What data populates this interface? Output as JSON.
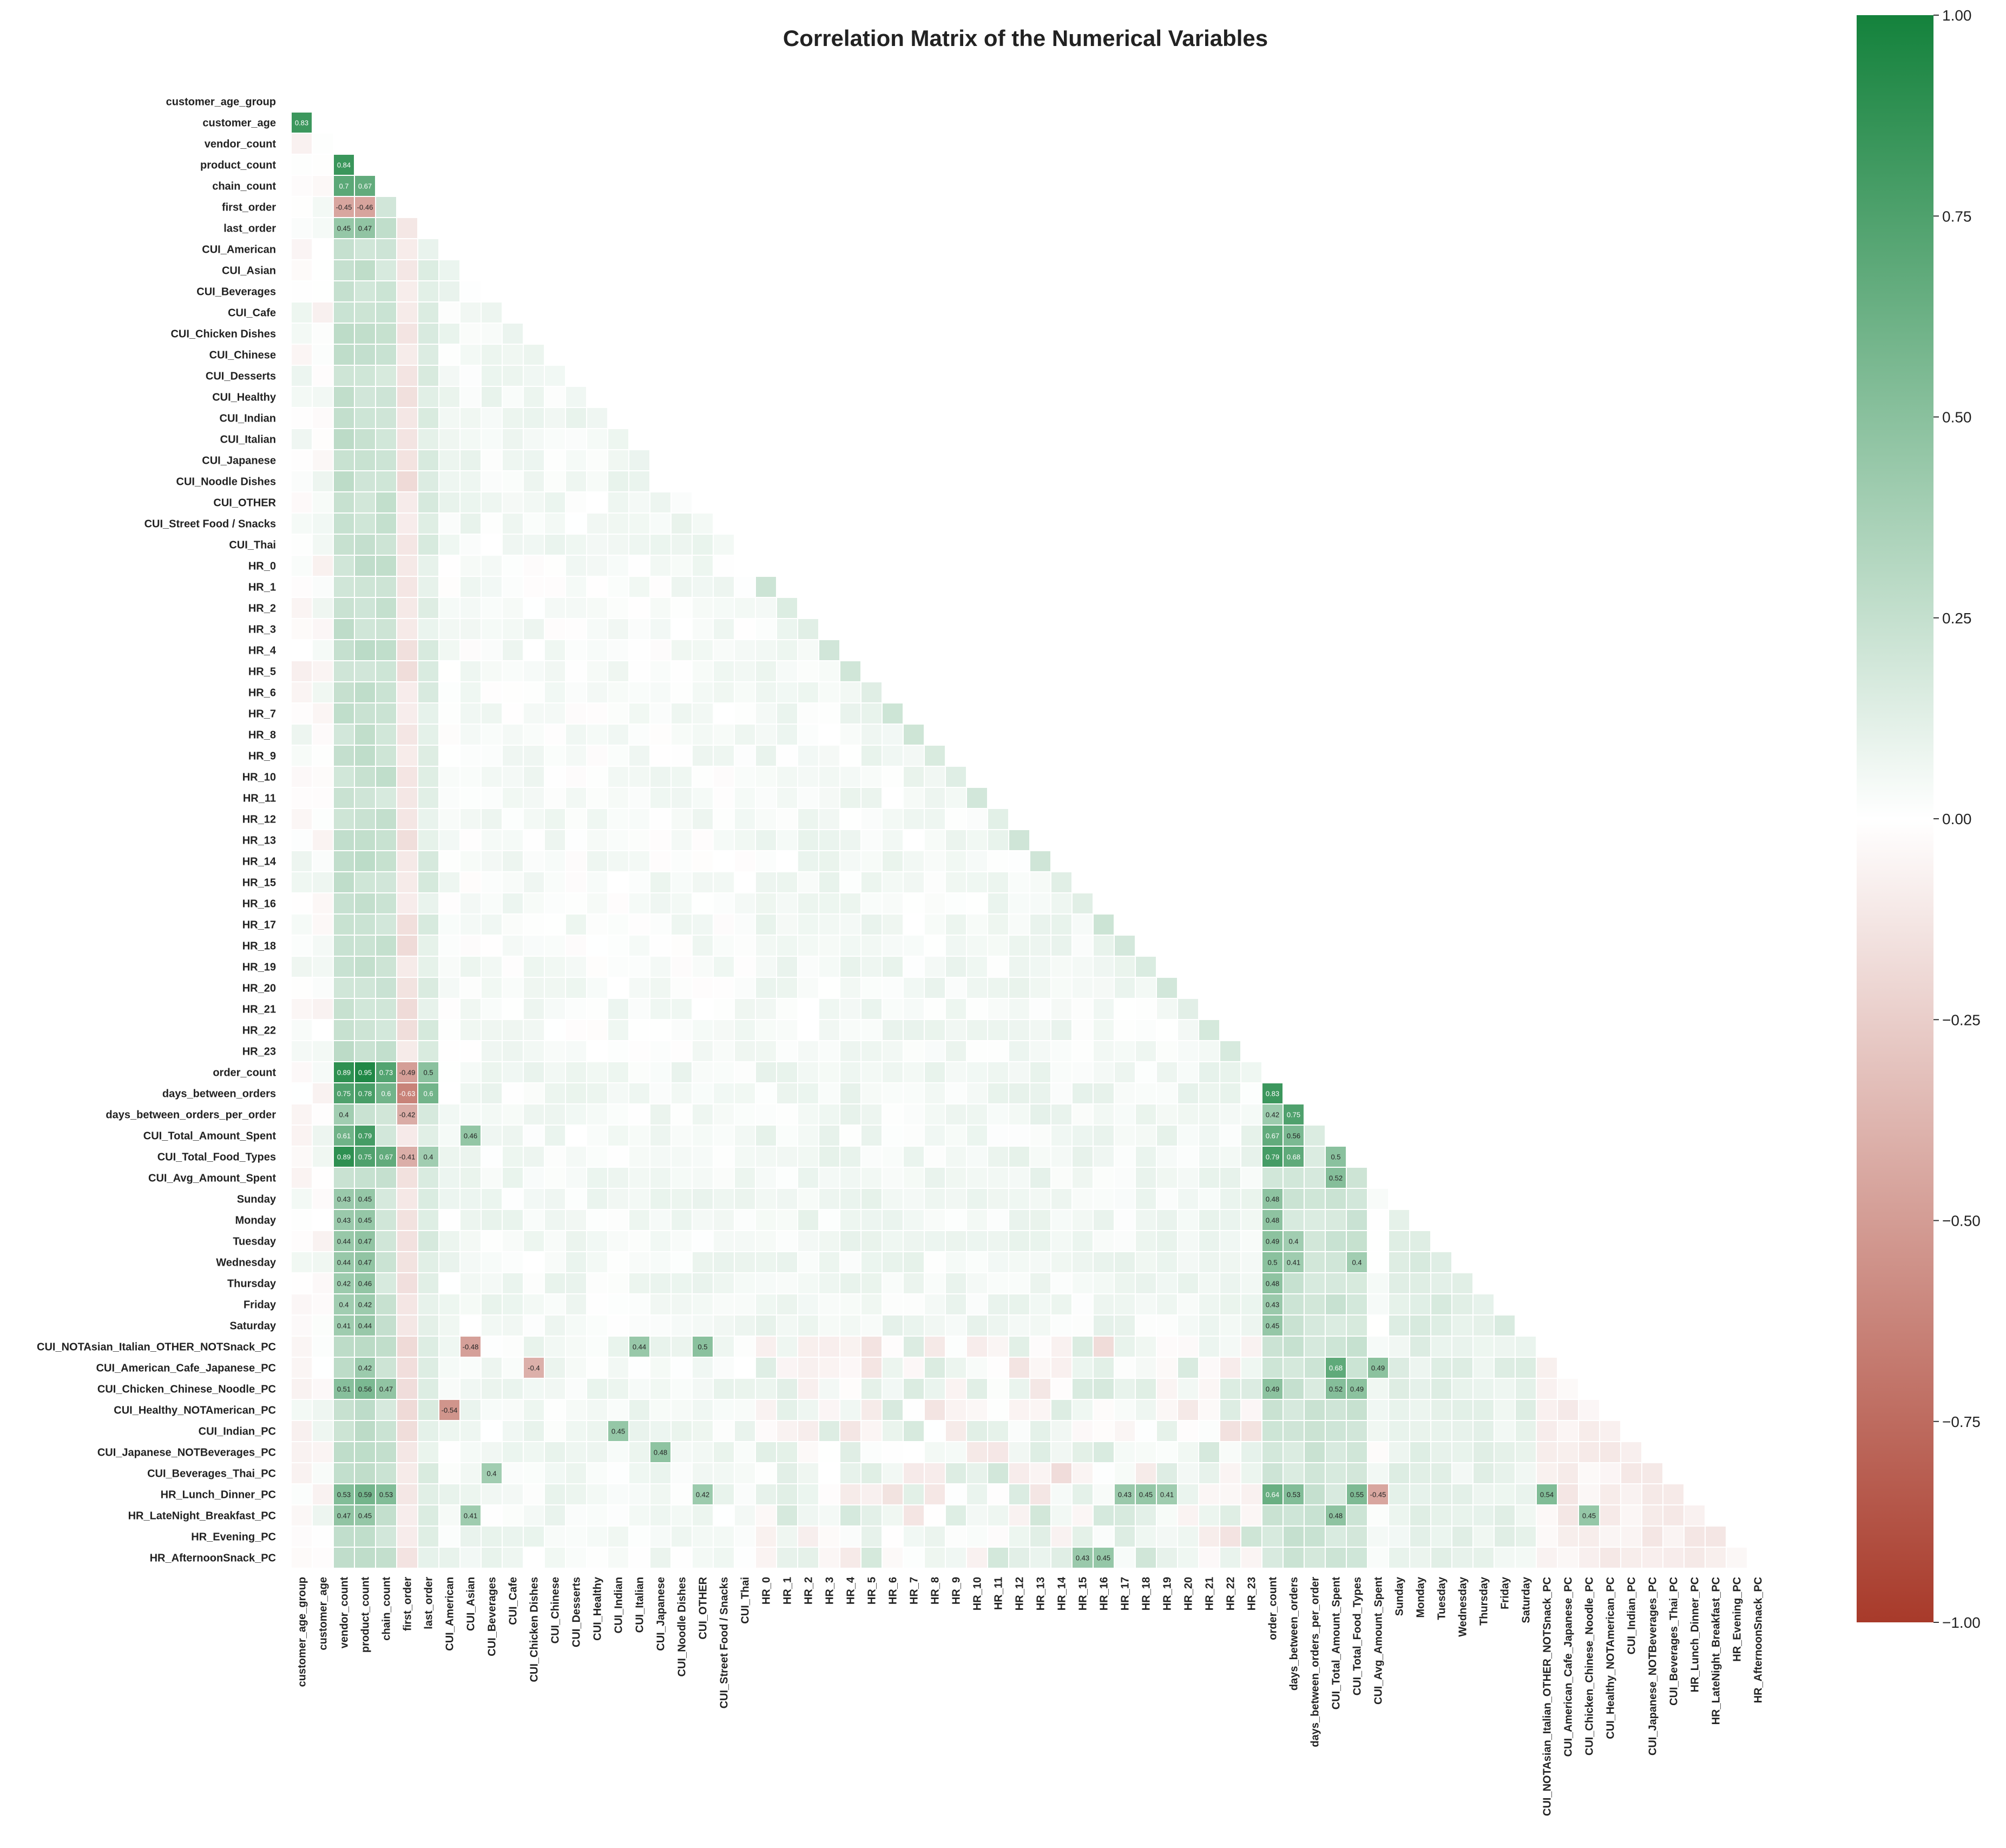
{
  "chart_data": {
    "type": "heatmap",
    "title": "Correlation Matrix of the Numerical Variables",
    "variables": [
      "customer_age_group",
      "customer_age",
      "vendor_count",
      "product_count",
      "chain_count",
      "first_order",
      "last_order",
      "CUI_American",
      "CUI_Asian",
      "CUI_Beverages",
      "CUI_Cafe",
      "CUI_Chicken Dishes",
      "CUI_Chinese",
      "CUI_Desserts",
      "CUI_Healthy",
      "CUI_Indian",
      "CUI_Italian",
      "CUI_Japanese",
      "CUI_Noodle Dishes",
      "CUI_OTHER",
      "CUI_Street Food / Snacks",
      "CUI_Thai",
      "HR_0",
      "HR_1",
      "HR_2",
      "HR_3",
      "HR_4",
      "HR_5",
      "HR_6",
      "HR_7",
      "HR_8",
      "HR_9",
      "HR_10",
      "HR_11",
      "HR_12",
      "HR_13",
      "HR_14",
      "HR_15",
      "HR_16",
      "HR_17",
      "HR_18",
      "HR_19",
      "HR_20",
      "HR_21",
      "HR_22",
      "HR_23",
      "order_count",
      "days_between_orders",
      "days_between_orders_per_order",
      "CUI_Total_Amount_Spent",
      "CUI_Total_Food_Types",
      "CUI_Avg_Amount_Spent",
      "Sunday",
      "Monday",
      "Tuesday",
      "Wednesday",
      "Thursday",
      "Friday",
      "Saturday",
      "CUI_NOTAsian_Italian_OTHER_NOTSnack_PC",
      "CUI_American_Cafe_Japanese_PC",
      "CUI_Chicken_Chinese_Noodle_PC",
      "CUI_Healthy_NOTAmerican_PC",
      "CUI_Indian_PC",
      "CUI_Japanese_NOTBeverages_PC",
      "CUI_Beverages_Thai_PC",
      "HR_Lunch_Dinner_PC",
      "HR_LateNight_Breakfast_PC",
      "HR_Evening_PC",
      "HR_AfternoonSnack_PC"
    ],
    "labeled_values": [
      [
        1,
        0,
        0.83
      ],
      [
        3,
        2,
        0.84
      ],
      [
        4,
        2,
        0.7
      ],
      [
        4,
        3,
        0.67
      ],
      [
        5,
        2,
        -0.45
      ],
      [
        5,
        3,
        -0.46
      ],
      [
        6,
        2,
        0.45
      ],
      [
        6,
        3,
        0.47
      ],
      [
        46,
        2,
        0.89
      ],
      [
        46,
        3,
        0.95
      ],
      [
        46,
        4,
        0.73
      ],
      [
        46,
        5,
        -0.49
      ],
      [
        46,
        6,
        0.5
      ],
      [
        47,
        2,
        0.75
      ],
      [
        47,
        3,
        0.78
      ],
      [
        47,
        4,
        0.6
      ],
      [
        47,
        5,
        -0.63
      ],
      [
        47,
        6,
        0.6
      ],
      [
        47,
        46,
        0.83
      ],
      [
        48,
        2,
        0.4
      ],
      [
        48,
        5,
        -0.42
      ],
      [
        48,
        46,
        0.42
      ],
      [
        48,
        47,
        0.75
      ],
      [
        49,
        2,
        0.61
      ],
      [
        49,
        3,
        0.79
      ],
      [
        49,
        8,
        0.46
      ],
      [
        49,
        46,
        0.67
      ],
      [
        49,
        47,
        0.56
      ],
      [
        50,
        2,
        0.89
      ],
      [
        50,
        3,
        0.75
      ],
      [
        50,
        4,
        0.67
      ],
      [
        50,
        5,
        -0.41
      ],
      [
        50,
        6,
        0.4
      ],
      [
        50,
        46,
        0.79
      ],
      [
        50,
        47,
        0.68
      ],
      [
        50,
        49,
        0.5
      ],
      [
        51,
        49,
        0.52
      ],
      [
        52,
        2,
        0.43
      ],
      [
        52,
        3,
        0.45
      ],
      [
        52,
        46,
        0.48
      ],
      [
        53,
        2,
        0.43
      ],
      [
        53,
        3,
        0.45
      ],
      [
        53,
        46,
        0.48
      ],
      [
        54,
        2,
        0.44
      ],
      [
        54,
        3,
        0.47
      ],
      [
        54,
        46,
        0.49
      ],
      [
        54,
        47,
        0.4
      ],
      [
        55,
        2,
        0.44
      ],
      [
        55,
        3,
        0.47
      ],
      [
        55,
        46,
        0.5
      ],
      [
        55,
        47,
        0.41
      ],
      [
        55,
        50,
        0.4
      ],
      [
        56,
        2,
        0.42
      ],
      [
        56,
        3,
        0.46
      ],
      [
        56,
        46,
        0.48
      ],
      [
        57,
        2,
        0.4
      ],
      [
        57,
        3,
        0.42
      ],
      [
        57,
        46,
        0.43
      ],
      [
        58,
        2,
        0.41
      ],
      [
        58,
        3,
        0.44
      ],
      [
        58,
        46,
        0.45
      ],
      [
        59,
        8,
        -0.48
      ],
      [
        59,
        16,
        0.44
      ],
      [
        59,
        19,
        0.5
      ],
      [
        60,
        3,
        0.42
      ],
      [
        60,
        11,
        -0.4
      ],
      [
        60,
        49,
        0.68
      ],
      [
        60,
        51,
        0.49
      ],
      [
        61,
        2,
        0.51
      ],
      [
        61,
        3,
        0.56
      ],
      [
        61,
        4,
        0.47
      ],
      [
        61,
        46,
        0.49
      ],
      [
        61,
        49,
        0.52
      ],
      [
        61,
        50,
        0.49
      ],
      [
        62,
        7,
        -0.54
      ],
      [
        63,
        15,
        0.45
      ],
      [
        64,
        17,
        0.48
      ],
      [
        65,
        9,
        0.4
      ],
      [
        66,
        2,
        0.53
      ],
      [
        66,
        3,
        0.59
      ],
      [
        66,
        4,
        0.53
      ],
      [
        66,
        19,
        0.42
      ],
      [
        66,
        39,
        0.43
      ],
      [
        66,
        40,
        0.45
      ],
      [
        66,
        41,
        0.41
      ],
      [
        66,
        46,
        0.64
      ],
      [
        66,
        47,
        0.53
      ],
      [
        66,
        50,
        0.55
      ],
      [
        66,
        51,
        -0.45
      ],
      [
        66,
        59,
        0.54
      ],
      [
        67,
        2,
        0.47
      ],
      [
        67,
        3,
        0.45
      ],
      [
        67,
        8,
        0.41
      ],
      [
        67,
        49,
        0.48
      ],
      [
        67,
        61,
        0.45
      ],
      [
        69,
        37,
        0.43
      ],
      [
        69,
        38,
        0.45
      ]
    ],
    "vmin": -1,
    "vmax": 1,
    "colormap": [
      "#a83a2a",
      "#ffffff",
      "#14823c"
    ],
    "mask": "upper triangle and diagonal hidden",
    "colorbar_ticks": [
      "1.00",
      "0.75",
      "0.50",
      "0.25",
      "0.00",
      "−0.25",
      "−0.50",
      "−0.75",
      "−1.00"
    ]
  }
}
